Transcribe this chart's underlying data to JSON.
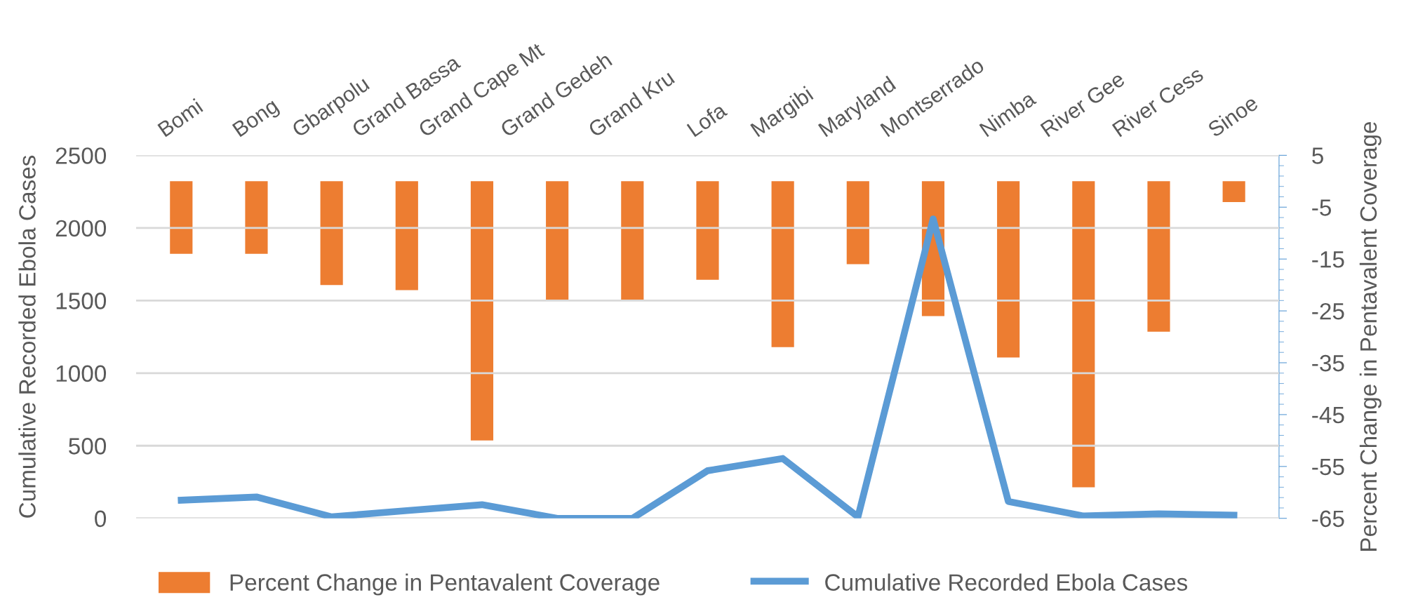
{
  "chart_data": {
    "type": "bar",
    "categories": [
      "Bomi",
      "Bong",
      "Gbarpolu",
      "Grand Bassa",
      "Grand Cape Mt",
      "Grand Gedeh",
      "Grand Kru",
      "Lofa",
      "Margibi",
      "Maryland",
      "Montserrado",
      "Nimba",
      "River Gee",
      "River Cess",
      "Sinoe"
    ],
    "series": [
      {
        "name": "Percent Change in Pentavalent Coverage",
        "axis": "y2",
        "color": "#ed7d31",
        "values": [
          -14,
          -14,
          -20,
          -21,
          -50,
          -23,
          -23,
          -19,
          -32,
          -16,
          -26,
          -34,
          -59,
          -29,
          -4
        ]
      },
      {
        "name": "Cumulative Recorded Ebola Cases",
        "type": "line",
        "axis": "y",
        "color": "#5b9bd5",
        "values": [
          125,
          147,
          10,
          53,
          94,
          0,
          0,
          328,
          412,
          10,
          2062,
          116,
          16,
          31,
          22
        ]
      }
    ],
    "ylabel": "Cumulative Recorded Ebola Cases",
    "y2label": "Percent Change in Pentavalent Coverage",
    "ylim": [
      0,
      2500
    ],
    "yticks": [
      0,
      500,
      1000,
      1500,
      2000,
      2500
    ],
    "y2lim": [
      -65,
      5
    ],
    "y2ticks": [
      -65,
      -55,
      -45,
      -35,
      -25,
      -15,
      -5,
      5
    ],
    "grid": "y",
    "legend": "bottom",
    "marker": "none",
    "line_style": "solid"
  }
}
